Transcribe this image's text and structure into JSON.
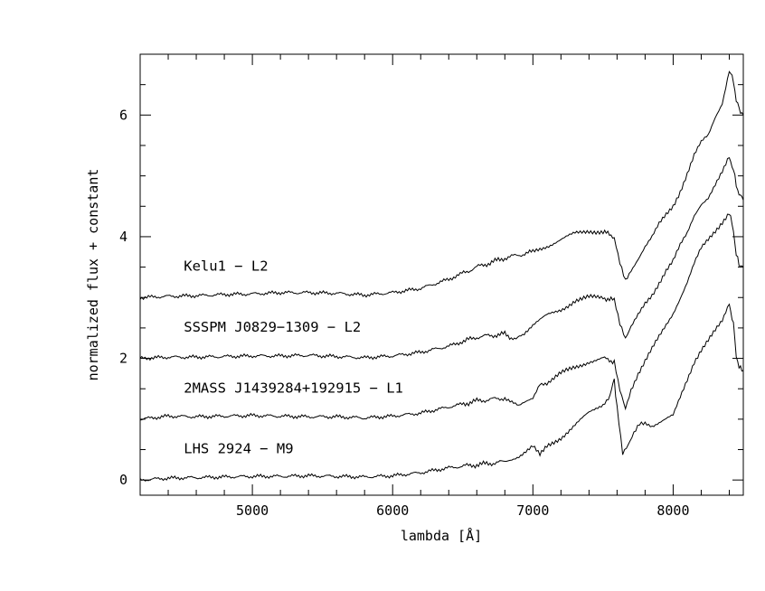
{
  "chart_data": {
    "type": "line",
    "xlabel": "lambda [Å]",
    "ylabel": "normalized flux + constant",
    "xlim": [
      4200,
      8500
    ],
    "ylim": [
      -0.25,
      7.0
    ],
    "x_ticks": [
      5000,
      6000,
      7000,
      8000
    ],
    "y_ticks": [
      0,
      2,
      4,
      6
    ],
    "x_tick_labels": [
      "5000",
      "6000",
      "7000",
      "8000"
    ],
    "y_tick_labels": [
      "0",
      "2",
      "4",
      "6"
    ],
    "grid": false,
    "legend": "none",
    "line_color": "#000000",
    "series": [
      {
        "name": "Kelu1 − L2",
        "label_pos": [
          4350,
          3.35
        ],
        "x": [
          4200,
          4400,
          4600,
          4800,
          5000,
          5200,
          5400,
          5600,
          5800,
          6000,
          6200,
          6400,
          6600,
          6800,
          7000,
          7100,
          7200,
          7300,
          7400,
          7500,
          7580,
          7620,
          7660,
          7700,
          7750,
          7800,
          7850,
          7900,
          7950,
          8000,
          8050,
          8100,
          8150,
          8200,
          8250,
          8300,
          8350,
          8400,
          8430,
          8450,
          8470,
          8500
        ],
        "y": [
          3.0,
          3.02,
          3.03,
          3.05,
          3.06,
          3.08,
          3.08,
          3.07,
          3.04,
          3.08,
          3.15,
          3.3,
          3.5,
          3.65,
          3.75,
          3.85,
          3.95,
          4.05,
          4.1,
          4.08,
          4.0,
          3.6,
          3.3,
          3.45,
          3.65,
          3.85,
          4.0,
          4.2,
          4.35,
          4.5,
          4.75,
          5.05,
          5.35,
          5.55,
          5.65,
          5.95,
          6.2,
          6.75,
          6.55,
          6.25,
          6.1,
          6.0
        ]
      },
      {
        "name": "SSSPM J0829−1309 − L2",
        "label_pos": [
          4350,
          2.35
        ],
        "x": [
          4200,
          4400,
          4600,
          4800,
          5000,
          5200,
          5400,
          5600,
          5800,
          6000,
          6200,
          6400,
          6600,
          6800,
          6880,
          6950,
          7000,
          7100,
          7200,
          7300,
          7400,
          7500,
          7580,
          7620,
          7660,
          7700,
          7750,
          7800,
          7850,
          7900,
          7950,
          8000,
          8050,
          8100,
          8150,
          8200,
          8250,
          8300,
          8350,
          8400,
          8430,
          8450,
          8470,
          8500
        ],
        "y": [
          2.0,
          2.02,
          2.02,
          2.03,
          2.04,
          2.04,
          2.05,
          2.03,
          2.01,
          2.04,
          2.1,
          2.2,
          2.35,
          2.4,
          2.3,
          2.45,
          2.55,
          2.7,
          2.8,
          2.95,
          3.0,
          3.0,
          2.95,
          2.55,
          2.3,
          2.5,
          2.7,
          2.9,
          3.05,
          3.25,
          3.45,
          3.6,
          3.85,
          4.05,
          4.35,
          4.55,
          4.65,
          4.85,
          5.05,
          5.3,
          5.1,
          4.85,
          4.7,
          4.6
        ]
      },
      {
        "name": "2MASS J1439284+192915 − L1",
        "label_pos": [
          4350,
          1.35
        ],
        "x": [
          4200,
          4400,
          4600,
          4800,
          5000,
          5200,
          5400,
          5600,
          5800,
          6000,
          6200,
          6400,
          6600,
          6800,
          6900,
          7000,
          7050,
          7100,
          7200,
          7300,
          7400,
          7500,
          7580,
          7620,
          7660,
          7700,
          7750,
          7800,
          7850,
          7900,
          7950,
          8000,
          8050,
          8100,
          8150,
          8200,
          8250,
          8300,
          8350,
          8400,
          8430,
          8450,
          8470,
          8500
        ],
        "y": [
          1.0,
          1.05,
          1.04,
          1.05,
          1.06,
          1.05,
          1.04,
          1.04,
          1.02,
          1.05,
          1.1,
          1.2,
          1.3,
          1.35,
          1.2,
          1.35,
          1.6,
          1.6,
          1.75,
          1.85,
          1.95,
          2.0,
          1.95,
          1.5,
          1.2,
          1.5,
          1.75,
          1.95,
          2.15,
          2.35,
          2.55,
          2.75,
          3.0,
          3.25,
          3.55,
          3.8,
          3.95,
          4.1,
          4.25,
          4.4,
          4.1,
          3.7,
          3.55,
          3.5
        ]
      },
      {
        "name": "LHS 2924 − M9",
        "label_pos": [
          4350,
          0.35
        ],
        "x": [
          4200,
          4400,
          4600,
          4800,
          5000,
          5200,
          5400,
          5600,
          5800,
          6000,
          6200,
          6400,
          6600,
          6800,
          6900,
          7000,
          7050,
          7100,
          7200,
          7300,
          7400,
          7500,
          7550,
          7580,
          7600,
          7640,
          7680,
          7720,
          7760,
          7800,
          7850,
          7900,
          7950,
          8000,
          8050,
          8100,
          8150,
          8200,
          8250,
          8300,
          8350,
          8400,
          8430,
          8450,
          8470,
          8500
        ],
        "y": [
          0.0,
          0.03,
          0.04,
          0.05,
          0.06,
          0.06,
          0.07,
          0.06,
          0.05,
          0.07,
          0.12,
          0.2,
          0.25,
          0.3,
          0.4,
          0.55,
          0.4,
          0.55,
          0.7,
          0.9,
          1.1,
          1.25,
          1.4,
          1.65,
          1.2,
          0.45,
          0.6,
          0.8,
          0.95,
          0.95,
          0.9,
          0.95,
          1.0,
          1.05,
          1.35,
          1.65,
          1.95,
          2.15,
          2.3,
          2.45,
          2.6,
          2.9,
          2.55,
          2.05,
          1.85,
          1.8
        ]
      }
    ]
  }
}
